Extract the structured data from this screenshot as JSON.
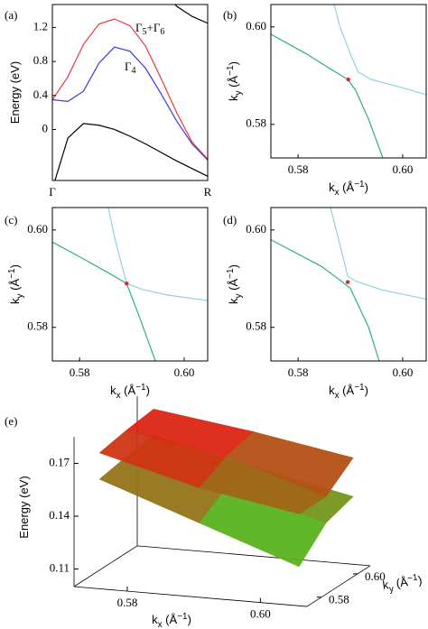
{
  "chart_data": [
    {
      "type": "line",
      "panel_label": "(a)",
      "y_label": {
        "parts": [
          {
            "t": "Energy (eV)"
          }
        ]
      },
      "x": [
        0,
        0.1,
        0.2,
        0.3,
        0.4,
        0.5,
        0.6,
        0.7,
        0.8,
        0.9,
        1
      ],
      "xlim": [
        0,
        1
      ],
      "xticks": [
        {
          "value": 0,
          "label": "Γ"
        },
        {
          "value": 1,
          "label": "R"
        }
      ],
      "ylim": [
        -0.6,
        1.47
      ],
      "yticks": [
        0,
        0.4,
        0.8,
        1.2
      ],
      "series": [
        {
          "color": "#e8383d",
          "values": [
            0.35,
            0.62,
            1.0,
            1.24,
            1.3,
            1.22,
            0.98,
            0.6,
            0.2,
            -0.15,
            -0.35
          ]
        },
        {
          "color": "#3a3ad6",
          "values": [
            0.35,
            0.33,
            0.45,
            0.78,
            0.97,
            0.92,
            0.72,
            0.42,
            0.1,
            -0.17,
            -0.36
          ]
        },
        {
          "color": "#000000",
          "values": [
            -0.7,
            -0.1,
            0.07,
            0.05,
            0.0,
            -0.08,
            -0.17,
            -0.27,
            -0.37,
            -0.46,
            -0.55
          ]
        },
        {
          "color": "#000000",
          "values": [
            null,
            null,
            null,
            null,
            null,
            null,
            null,
            1.65,
            1.45,
            1.33,
            1.25
          ]
        }
      ],
      "annotations": [
        {
          "color": "#e8383d",
          "parts": [
            {
              "t": "Γ"
            },
            {
              "t": "5",
              "sub": true
            },
            {
              "t": "+Γ"
            },
            {
              "t": "6",
              "sub": true
            }
          ]
        },
        {
          "color": "#3a3ad6",
          "parts": [
            {
              "t": "Γ"
            },
            {
              "t": "4",
              "sub": true
            }
          ]
        }
      ]
    },
    {
      "type": "line",
      "panel_label": "(b)",
      "x_label": {
        "parts": [
          {
            "t": "k"
          },
          {
            "t": "x",
            "sub": true
          },
          {
            "t": " (Å"
          },
          {
            "t": "−1",
            "sup": true
          },
          {
            "t": ")"
          }
        ]
      },
      "y_label": {
        "parts": [
          {
            "t": "k"
          },
          {
            "t": "y",
            "sub": true
          },
          {
            "t": " (Å"
          },
          {
            "t": "−1",
            "sup": true
          },
          {
            "t": ")"
          }
        ]
      },
      "xlim": [
        0.5748,
        0.6045
      ],
      "xticks": [
        0.58,
        {
          "value": 0.6,
          "label": "0.60"
        }
      ],
      "ylim": [
        0.5731,
        0.6046
      ],
      "yticks": [
        0.58,
        {
          "value": 0.6,
          "label": "0.60"
        }
      ],
      "series": [
        {
          "color": "#8fd0ea",
          "x": [
            0.5869,
            0.588,
            0.59,
            0.5915,
            0.594,
            0.6,
            0.6045
          ],
          "values": [
            0.6046,
            0.6,
            0.5945,
            0.5907,
            0.5892,
            0.5875,
            0.5861
          ]
        },
        {
          "color": "#2fae8a",
          "x": [
            0.5748,
            0.5817,
            0.586,
            0.5895,
            0.591,
            0.5935,
            0.5962
          ],
          "values": [
            0.5985,
            0.5944,
            0.5915,
            0.5892,
            0.587,
            0.581,
            0.5731
          ]
        }
      ],
      "points": {
        "color": "#e8202a",
        "x": [
          0.5896
        ],
        "values": [
          0.5892
        ]
      }
    },
    {
      "type": "line",
      "panel_label": "(c)",
      "x_label": {
        "parts": [
          {
            "t": "k"
          },
          {
            "t": "x",
            "sub": true
          },
          {
            "t": " (Å"
          },
          {
            "t": "−1",
            "sup": true
          },
          {
            "t": ")"
          }
        ]
      },
      "y_label": {
        "parts": [
          {
            "t": "k"
          },
          {
            "t": "y",
            "sub": true
          },
          {
            "t": " (Å"
          },
          {
            "t": "−1",
            "sup": true
          },
          {
            "t": ")"
          }
        ]
      },
      "xlim": [
        0.5748,
        0.6045
      ],
      "xticks": [
        0.58,
        {
          "value": 0.6,
          "label": "0.60"
        }
      ],
      "ylim": [
        0.5731,
        0.6046
      ],
      "yticks": [
        0.58,
        {
          "value": 0.6,
          "label": "0.60"
        }
      ],
      "series": [
        {
          "color": "#8fd0ea",
          "x": [
            0.5855,
            0.5868,
            0.589,
            0.592,
            0.597,
            0.6045
          ],
          "values": [
            0.6046,
            0.598,
            0.589,
            0.5878,
            0.5866,
            0.5855
          ]
        },
        {
          "color": "#2fae8a",
          "x": [
            0.5748,
            0.58,
            0.5855,
            0.589,
            0.5915,
            0.5945
          ],
          "values": [
            0.5975,
            0.5945,
            0.5912,
            0.589,
            0.582,
            0.5731
          ]
        }
      ],
      "points": {
        "color": "#e8202a",
        "x": [
          0.589
        ],
        "values": [
          0.589
        ]
      }
    },
    {
      "type": "line",
      "panel_label": "(d)",
      "x_label": {
        "parts": [
          {
            "t": "k"
          },
          {
            "t": "x",
            "sub": true
          },
          {
            "t": " (Å"
          },
          {
            "t": "−1",
            "sup": true
          },
          {
            "t": ")"
          }
        ]
      },
      "y_label": {
        "parts": [
          {
            "t": "k"
          },
          {
            "t": "y",
            "sub": true
          },
          {
            "t": " (Å"
          },
          {
            "t": "−1",
            "sup": true
          },
          {
            "t": ")"
          }
        ]
      },
      "xlim": [
        0.5748,
        0.6045
      ],
      "xticks": [
        0.58,
        {
          "value": 0.6,
          "label": "0.60"
        }
      ],
      "ylim": [
        0.5731,
        0.6046
      ],
      "yticks": [
        0.58,
        {
          "value": 0.6,
          "label": "0.60"
        }
      ],
      "series": [
        {
          "color": "#8fd0ea",
          "x": [
            0.5862,
            0.588,
            0.5895,
            0.591,
            0.596,
            0.6045
          ],
          "values": [
            0.6046,
            0.597,
            0.5905,
            0.5895,
            0.5877,
            0.5858
          ]
        },
        {
          "color": "#2fae8a",
          "x": [
            0.5748,
            0.5845,
            0.5885,
            0.59,
            0.5935,
            0.5955
          ],
          "values": [
            0.598,
            0.5925,
            0.5893,
            0.588,
            0.58,
            0.5731
          ]
        }
      ],
      "points": {
        "color": "#e8202a",
        "x": [
          0.5895
        ],
        "values": [
          0.5893
        ]
      }
    },
    {
      "type": "surface3d",
      "panel_label": "(e)",
      "z_label": {
        "parts": [
          {
            "t": "Energy (eV)"
          }
        ]
      },
      "x_label": {
        "parts": [
          {
            "t": "k"
          },
          {
            "t": "x",
            "sub": true
          },
          {
            "t": " (Å"
          },
          {
            "t": "−1",
            "sup": true
          },
          {
            "t": ")"
          }
        ]
      },
      "y_label": {
        "parts": [
          {
            "t": "k"
          },
          {
            "t": "y",
            "sub": true
          },
          {
            "t": " (Å"
          },
          {
            "t": "−1",
            "sup": true
          },
          {
            "t": ")"
          }
        ]
      },
      "xlim": [
        0.572,
        0.607
      ],
      "xticks": [
        0.58,
        {
          "value": 0.6,
          "label": "0.60"
        }
      ],
      "ylim": [
        0.572,
        0.607
      ],
      "yticks": [
        0.58,
        {
          "value": 0.6,
          "label": "0.60"
        }
      ],
      "zlim": [
        0.1,
        0.185
      ],
      "zticks": [
        0.11,
        0.14,
        0.17
      ],
      "kx": [
        0.575,
        0.59,
        0.605
      ],
      "ky": [
        0.575,
        0.59,
        0.605
      ],
      "colors": [
        "#22ee22",
        "#ee1111"
      ],
      "surfaces": [
        {
          "z": [
            [
              0.16,
              0.14,
              0.12
            ],
            [
              0.163,
              0.15,
              0.135
            ],
            [
              0.165,
              0.152,
              0.14
            ]
          ]
        },
        {
          "z": [
            [
              0.175,
              0.16,
              0.15
            ],
            [
              0.178,
              0.168,
              0.15
            ],
            [
              0.18,
              0.172,
              0.162
            ]
          ]
        }
      ]
    }
  ]
}
